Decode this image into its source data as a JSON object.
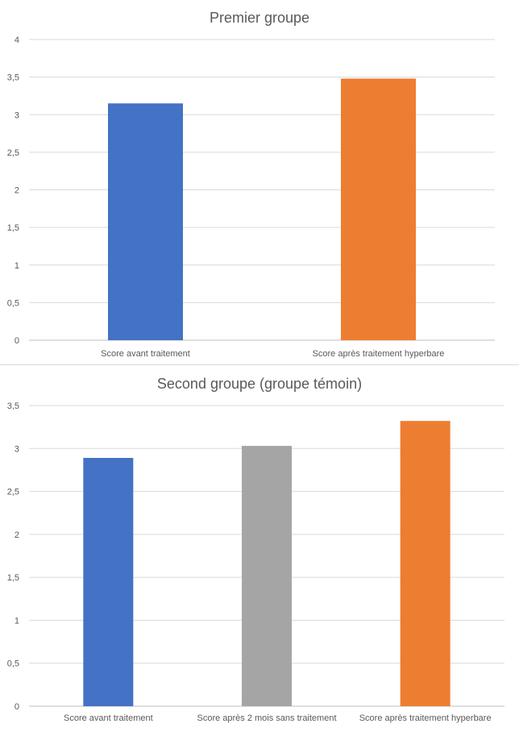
{
  "chart_data": [
    {
      "type": "bar",
      "title": "Premier groupe",
      "categories": [
        "Score avant traitement",
        "Score après traitement hyperbare"
      ],
      "values": [
        3.15,
        3.48
      ],
      "colors": [
        "#4472C4",
        "#ED7D31"
      ],
      "ylim": [
        0,
        4
      ],
      "yticks": [
        "0",
        "0,5",
        "1",
        "1,5",
        "2",
        "2,5",
        "3",
        "3,5",
        "4"
      ],
      "grid": true,
      "legend": "none"
    },
    {
      "type": "bar",
      "title": "Second groupe (groupe témoin)",
      "categories": [
        "Score avant traitement",
        "Score après 2 mois sans traitement",
        "Score après traitement hyperbare"
      ],
      "values": [
        2.89,
        3.03,
        3.32
      ],
      "colors": [
        "#4472C4",
        "#A5A5A5",
        "#ED7D31"
      ],
      "ylim": [
        0,
        3.5
      ],
      "yticks": [
        "0",
        "0,5",
        "1",
        "1,5",
        "2",
        "2,5",
        "3",
        "3,5"
      ],
      "grid": true,
      "legend": "none"
    }
  ]
}
